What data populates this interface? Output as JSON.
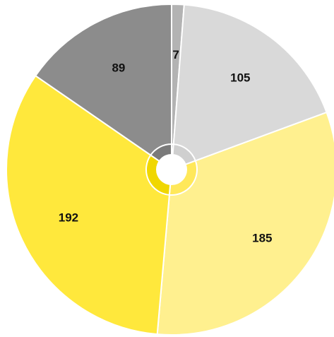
{
  "chart_data": {
    "type": "pie",
    "values": [
      7,
      105,
      185,
      192,
      89
    ],
    "colors": [
      "#b3b3b3",
      "#d9d9d9",
      "#fff08f",
      "#ffe83c",
      "#8c8c8c"
    ],
    "inner_colors": [
      "#c4c4c4",
      "#cfcfcf",
      "#ffe85a",
      "#f0d700",
      "#7a7a7a"
    ]
  }
}
